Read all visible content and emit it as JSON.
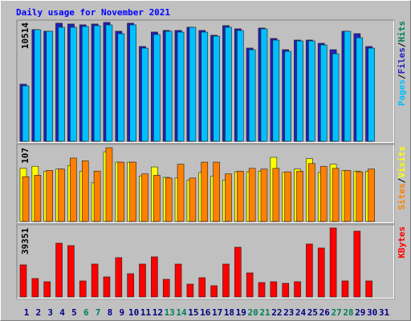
{
  "chart_data": [
    {
      "type": "bar",
      "title": "Daily usage for November 2021",
      "ylim": [
        0,
        10514
      ],
      "yticks": [
        10514
      ],
      "legend_separator": "/",
      "series": [
        {
          "name": "Pages",
          "color": "#00c0ff",
          "values": [
            4902,
            9875,
            9733,
            10088,
            10088,
            10159,
            10230,
            10301,
            9519,
            10301,
            8241,
            9448,
            9733,
            9661,
            10088,
            9661,
            9306,
            10088,
            9804,
            8099,
            9946,
            8951,
            7957,
            8880,
            8880,
            8525,
            7744,
            9733,
            9164,
            8241,
            null
          ]
        },
        {
          "name": "Files",
          "color": "#2020c0",
          "values": [
            5044,
            9875,
            9733,
            10443,
            10372,
            10301,
            10372,
            10514,
            9733,
            10443,
            8383,
            9661,
            9804,
            9804,
            10088,
            9804,
            9377,
            10230,
            9946,
            8241,
            10017,
            9093,
            8099,
            8951,
            8951,
            8667,
            8099,
            9733,
            9519,
            8383,
            null
          ]
        },
        {
          "name": "Hits",
          "color": "#00805c",
          "values": [
            5044,
            9875,
            9733,
            10443,
            10372,
            10301,
            10372,
            10514,
            9733,
            10443,
            8383,
            9661,
            9804,
            9804,
            10088,
            9804,
            9377,
            10230,
            9946,
            8241,
            10017,
            9093,
            8099,
            8951,
            8951,
            8667,
            8099,
            9733,
            9519,
            8383,
            null
          ]
        }
      ]
    },
    {
      "type": "bar",
      "ylim": [
        0,
        107
      ],
      "yticks": [
        107
      ],
      "legend_separator": "/",
      "series": [
        {
          "name": "Sites",
          "color": "#ff8000",
          "values": [
            65,
            67,
            74,
            76,
            92,
            88,
            73,
            107,
            86,
            86,
            69,
            67,
            63,
            83,
            63,
            86,
            86,
            69,
            73,
            77,
            76,
            77,
            72,
            73,
            84,
            80,
            77,
            74,
            72,
            76,
            null
          ]
        },
        {
          "name": "Visits",
          "color": "#ffff00",
          "values": [
            77,
            80,
            73,
            76,
            81,
            73,
            56,
            101,
            86,
            86,
            66,
            79,
            64,
            63,
            60,
            71,
            66,
            60,
            72,
            72,
            73,
            93,
            71,
            76,
            91,
            71,
            83,
            74,
            73,
            73,
            null
          ]
        }
      ]
    },
    {
      "type": "bar",
      "ylim": [
        0,
        39351
      ],
      "yticks": [
        39351
      ],
      "categories": [
        "1",
        "2",
        "3",
        "4",
        "5",
        "6",
        "7",
        "8",
        "9",
        "10",
        "11",
        "12",
        "13",
        "14",
        "15",
        "16",
        "17",
        "18",
        "19",
        "20",
        "21",
        "22",
        "23",
        "24",
        "25",
        "26",
        "27",
        "28",
        "29",
        "30",
        "31"
      ],
      "weekend_indices": [
        5,
        6,
        12,
        13,
        19,
        20,
        26,
        27
      ],
      "weekend_color": "#00805c",
      "label_color": "#000080",
      "series": [
        {
          "name": "KBytes",
          "color": "#ff0000",
          "values": [
            18304,
            10525,
            8694,
            30659,
            29286,
            9152,
            18762,
            11440,
            22422,
            13270,
            18762,
            22880,
            10067,
            18762,
            7322,
            10982,
            6406,
            18762,
            28371,
            13728,
            8237,
            8694,
            7779,
            8694,
            30202,
            27914,
            39351,
            9152,
            37523,
            9152,
            null
          ]
        }
      ]
    }
  ]
}
